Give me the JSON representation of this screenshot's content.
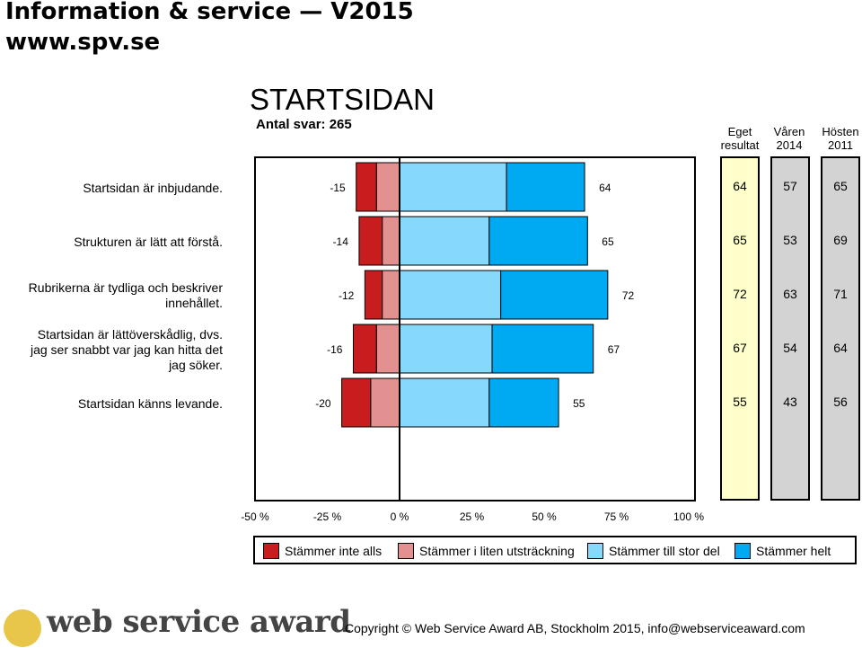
{
  "header": {
    "title": "Information & service  — V2015",
    "url": "www.spv.se"
  },
  "page_title": "STARTSIDAN",
  "subtitle": "Antal svar: 265",
  "columns": {
    "own_line1": "Eget",
    "own_line2": "resultat",
    "spring_line1": "Våren",
    "spring_line2": "2014",
    "autumn_line1": "Hösten",
    "autumn_line2": "2011"
  },
  "colors": {
    "disagree_fully": "#c81d1f",
    "disagree_little": "#e29090",
    "agree_large": "#87d9fb",
    "agree_fully": "#00aaf2",
    "own_panel": "#ffffcc",
    "other_panel": "#d3d3d3"
  },
  "chart_data": {
    "type": "bar",
    "orientation": "horizontal-diverging",
    "categories": [
      [
        "Startsidan är inbjudande."
      ],
      [
        "Strukturen är lätt att förstå."
      ],
      [
        "Rubrikerna är tydliga och beskriver",
        "innehållet."
      ],
      [
        "Startsidan är lättöverskådlig, dvs.",
        "jag ser snabbt var jag kan hitta det",
        "jag söker."
      ],
      [
        "Startsidan känns levande."
      ]
    ],
    "series": [
      {
        "name": "Stämmer inte alls",
        "values": [
          -7,
          -8,
          -6,
          -8,
          -10
        ]
      },
      {
        "name": "Stämmer i liten utsträckning",
        "values": [
          -8,
          -6,
          -6,
          -8,
          -10
        ]
      },
      {
        "name": "Stämmer till stor del",
        "values": [
          37,
          31,
          35,
          32,
          31
        ]
      },
      {
        "name": "Stämmer helt",
        "values": [
          27,
          34,
          37,
          35,
          24
        ]
      }
    ],
    "negative_labels": [
      "-15",
      "-14",
      "-12",
      "-16",
      "-20"
    ],
    "positive_labels": [
      "64",
      "65",
      "72",
      "67",
      "55"
    ],
    "xlim": [
      -50,
      100
    ],
    "xticks": [
      "-50 %",
      "-25 %",
      "0 %",
      "25 %",
      "50 %",
      "75 %",
      "100 %"
    ],
    "legend_position": "bottom",
    "grid": false
  },
  "results": {
    "own": [
      "64",
      "65",
      "72",
      "67",
      "55"
    ],
    "spring_2014": [
      "57",
      "53",
      "63",
      "54",
      "43"
    ],
    "autumn_2011": [
      "65",
      "69",
      "71",
      "64",
      "56"
    ]
  },
  "footer": {
    "logo_text": "web service award",
    "copyright": "Copyright © Web Service Award AB, Stockholm 2015, info@webserviceaward.com"
  }
}
